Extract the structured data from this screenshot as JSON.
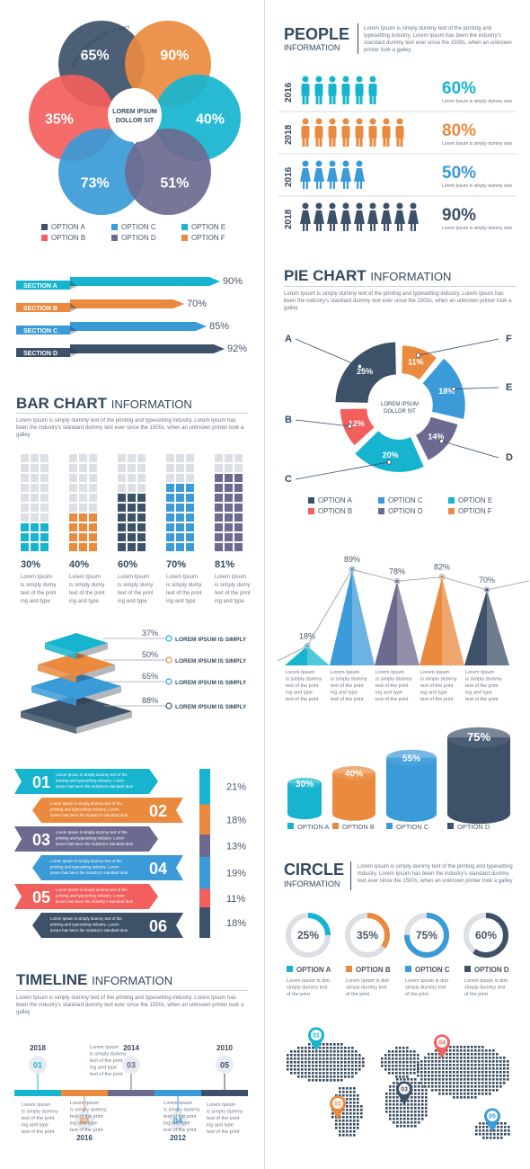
{
  "colors": {
    "navy": "#3d5168",
    "orange": "#ea8a3f",
    "cyan": "#16b4cf",
    "red": "#f25f5c",
    "blue": "#3b9ad8",
    "purple": "#6d6a8f",
    "dark": "#34495e",
    "grey": "#d6d9de"
  },
  "venn": {
    "center_label": "LOREM IPSUM DOLLOR SIT",
    "arc_text": "LOREM IPSUM DOLLOR SIT AMET",
    "circles": [
      {
        "label": "65%",
        "color": "#3d5168"
      },
      {
        "label": "90%",
        "color": "#ea8a3f"
      },
      {
        "label": "35%",
        "color": "#f25f5c"
      },
      {
        "label": "40%",
        "color": "#16b4cf"
      },
      {
        "label": "73%",
        "color": "#3b9ad8"
      },
      {
        "label": "51%",
        "color": "#6d6a8f"
      }
    ],
    "legend": [
      {
        "label": "OPTION A",
        "color": "#3d5168"
      },
      {
        "label": "OPTION C",
        "color": "#3b9ad8"
      },
      {
        "label": "OPTION E",
        "color": "#16b4cf"
      },
      {
        "label": "OPTION B",
        "color": "#f25f5c"
      },
      {
        "label": "OPTION D",
        "color": "#6d6a8f"
      },
      {
        "label": "OPTION F",
        "color": "#ea8a3f"
      }
    ]
  },
  "sections": [
    {
      "label": "SECTION A",
      "value": "90%",
      "color": "#16b4cf"
    },
    {
      "label": "SECTION B",
      "value": "70%",
      "color": "#ea8a3f"
    },
    {
      "label": "SECTION C",
      "value": "85%",
      "color": "#3b9ad8"
    },
    {
      "label": "SECTION D",
      "value": "92%",
      "color": "#3d5168"
    }
  ],
  "bar_chart": {
    "title_bold": "BAR CHART",
    "title_light": "INFORMATION",
    "desc": "Lorem Ipsum is simply dummy text of the printing and typesetting industry. Lorem Ipsum has been the industry's standard dummy text ever since the 1500s, when an unknown printer took a galley",
    "caption": "Lorem Ipsum is simply dummy text of the print ing and type",
    "items": [
      {
        "value": 30,
        "label": "30%",
        "color": "#16b4cf"
      },
      {
        "value": 40,
        "label": "40%",
        "color": "#ea8a3f"
      },
      {
        "value": 60,
        "label": "60%",
        "color": "#3d5168"
      },
      {
        "value": 70,
        "label": "70%",
        "color": "#3b9ad8"
      },
      {
        "value": 81,
        "label": "81%",
        "color": "#6d6a8f"
      }
    ]
  },
  "layers": {
    "text": "LOREM IPSUM IS SIMPLY",
    "items": [
      {
        "value": "37%",
        "color": "#16b4cf"
      },
      {
        "value": "50%",
        "color": "#ea8a3f"
      },
      {
        "value": "65%",
        "color": "#3b9ad8"
      },
      {
        "value": "88%",
        "color": "#3d5168"
      }
    ]
  },
  "ribbons": {
    "text": "Lorem Ipsum is simply dummy text of the printing and typesetting industry. Lorem Ipsum has been the industry's standard dum",
    "items": [
      {
        "num": "01",
        "color": "#16b4cf",
        "side": "left",
        "pct": "21%",
        "value": 21
      },
      {
        "num": "02",
        "color": "#ea8a3f",
        "side": "right",
        "pct": "18%",
        "value": 18
      },
      {
        "num": "03",
        "color": "#6d6a8f",
        "side": "left",
        "pct": "13%",
        "value": 13
      },
      {
        "num": "04",
        "color": "#3b9ad8",
        "side": "right",
        "pct": "19%",
        "value": 19
      },
      {
        "num": "05",
        "color": "#f25f5c",
        "side": "left",
        "pct": "11%",
        "value": 11
      },
      {
        "num": "06",
        "color": "#3d5168",
        "side": "right",
        "pct": "18%",
        "value": 18
      }
    ]
  },
  "timeline": {
    "title_bold": "TIMELINE",
    "title_light": "INFORMATION",
    "desc": "Lorem Ipsum is simply dummy text of the printing and typesetting industry. Lorem Ipsum has been the industry's standard dummy text ever since the 1500s, when an unknown printer took a galley",
    "caption": "Lorem Ipsum is simply dummy text of the print ing and type text of the print",
    "items": [
      {
        "num": "01",
        "year": "2018",
        "color": "#16b4cf",
        "pos": "top"
      },
      {
        "num": "02",
        "year": "2016",
        "color": "#ea8a3f",
        "pos": "bottom"
      },
      {
        "num": "03",
        "year": "2014",
        "color": "#6d6a8f",
        "pos": "top"
      },
      {
        "num": "04",
        "year": "2012",
        "color": "#3b9ad8",
        "pos": "bottom"
      },
      {
        "num": "05",
        "year": "2010",
        "color": "#3d5168",
        "pos": "top"
      }
    ]
  },
  "people": {
    "title_bold": "PEOPLE",
    "title_light": "INFORMATION",
    "desc": "Lorem Ipsum is simply dummy text of the printing and typesetting industry. Lorem Ipsum has been the industry's standard dummy text ever since the 1500s, when an unknown printer took a galley",
    "sub": "Lorem Ipsum is simply dummy stes",
    "rows": [
      {
        "year": "2016",
        "value": "60%",
        "color": "#16b4cf",
        "count": 6,
        "gender": "male"
      },
      {
        "year": "2018",
        "value": "80%",
        "color": "#ea8a3f",
        "count": 8,
        "gender": "male"
      },
      {
        "year": "2016",
        "value": "50%",
        "color": "#3b9ad8",
        "count": 5,
        "gender": "female"
      },
      {
        "year": "2018",
        "value": "90%",
        "color": "#3d5168",
        "count": 9,
        "gender": "female"
      }
    ]
  },
  "pie": {
    "title_bold": "PIE CHART",
    "title_light": "INFORMATION",
    "desc": "Lorem Ipsum is simply dummy text of the printing and typesetting industry. Lorem Ipsum has been the industry's standard dummy text ever since the 1500s, when an unknown printer took a galley",
    "center": "LOREM IPSUM DOLLOR SIT",
    "legend": [
      {
        "label": "OPTION A",
        "color": "#3d5168"
      },
      {
        "label": "OPTION C",
        "color": "#3b9ad8"
      },
      {
        "label": "OPTION E",
        "color": "#16b4cf"
      },
      {
        "label": "OPTION B",
        "color": "#f25f5c"
      },
      {
        "label": "OPTION D",
        "color": "#6d6a8f"
      },
      {
        "label": "OPTION F",
        "color": "#ea8a3f"
      }
    ]
  },
  "triangles": {
    "caption": "Lorem Ipsum is simply dummy text of the print ing and type text of the print",
    "items": [
      {
        "value": 18,
        "label": "18%",
        "color": "#16b4cf"
      },
      {
        "value": 89,
        "label": "89%",
        "color": "#3b9ad8"
      },
      {
        "value": 78,
        "label": "78%",
        "color": "#6d6a8f"
      },
      {
        "value": 82,
        "label": "82%",
        "color": "#ea8a3f"
      },
      {
        "value": 70,
        "label": "70%",
        "color": "#3d5168"
      }
    ]
  },
  "cylinders": {
    "items": [
      {
        "value": 30,
        "label": "30%",
        "option": "OPTION A",
        "color": "#16b4cf"
      },
      {
        "value": 40,
        "label": "40%",
        "option": "OPTION B",
        "color": "#ea8a3f"
      },
      {
        "value": 55,
        "label": "55%",
        "option": "OPTION C",
        "color": "#3b9ad8"
      },
      {
        "value": 75,
        "label": "75%",
        "option": "OPTION D",
        "color": "#3d5168"
      }
    ]
  },
  "circle": {
    "title_bold": "CIRCLE",
    "title_light": "INFORMATION",
    "desc": "Lorem Ipsum is simply dummy text of the printing and typesetting industry. Lorem Ipsum has been the industry's standard dummy text ever since the 1500s, when an unknown printer took a galley",
    "caption": "Lorem Ipsum is dolr simply dummy text of the print",
    "items": [
      {
        "value": 25,
        "label": "25%",
        "option": "OPTION A",
        "color": "#16b4cf"
      },
      {
        "value": 35,
        "label": "35%",
        "option": "OPTION B",
        "color": "#ea8a3f"
      },
      {
        "value": 75,
        "label": "75%",
        "option": "OPTION C",
        "color": "#3b9ad8"
      },
      {
        "value": 60,
        "label": "60%",
        "option": "OPTION D",
        "color": "#3d5168"
      }
    ]
  },
  "map": {
    "pins": [
      {
        "num": "01",
        "color": "#16b4cf"
      },
      {
        "num": "02",
        "color": "#ea8a3f"
      },
      {
        "num": "03",
        "color": "#3d5168"
      },
      {
        "num": "04",
        "color": "#f25f5c"
      },
      {
        "num": "05",
        "color": "#3b9ad8"
      }
    ]
  },
  "chart_data": [
    {
      "type": "bar",
      "title": "BAR CHART INFORMATION",
      "categories": [
        "1",
        "2",
        "3",
        "4",
        "5"
      ],
      "values": [
        30,
        40,
        60,
        70,
        81
      ],
      "ylim": [
        0,
        100
      ]
    },
    {
      "type": "bar",
      "title": "",
      "categories": [
        "SECTION A",
        "SECTION B",
        "SECTION C",
        "SECTION D"
      ],
      "values": [
        90,
        70,
        85,
        92
      ]
    },
    {
      "type": "pie",
      "title": "PIE CHART INFORMATION",
      "categories": [
        "OPTION A",
        "OPTION B",
        "OPTION C",
        "OPTION D",
        "OPTION E",
        "OPTION F"
      ],
      "values": [
        25,
        12,
        20,
        14,
        18,
        11
      ]
    },
    {
      "type": "bar",
      "title": "",
      "categories": [
        "1",
        "2",
        "3",
        "4",
        "5"
      ],
      "values": [
        18,
        89,
        78,
        82,
        70
      ]
    },
    {
      "type": "bar",
      "title": "",
      "categories": [
        "OPTION A",
        "OPTION B",
        "OPTION C",
        "OPTION D"
      ],
      "values": [
        30,
        40,
        55,
        75
      ]
    },
    {
      "type": "pie",
      "title": "CIRCLE INFORMATION",
      "categories": [
        "OPTION A",
        "OPTION B",
        "OPTION C",
        "OPTION D"
      ],
      "values": [
        25,
        35,
        75,
        60
      ]
    },
    {
      "type": "bar",
      "title": "",
      "categories": [
        "01",
        "02",
        "03",
        "04",
        "05",
        "06"
      ],
      "values": [
        21,
        18,
        13,
        19,
        11,
        18
      ]
    }
  ]
}
